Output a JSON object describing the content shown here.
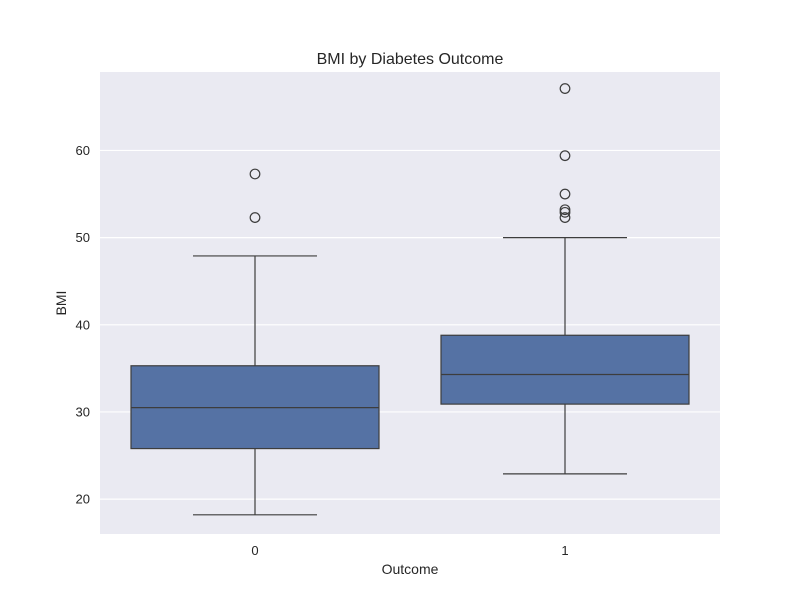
{
  "chart_data": {
    "type": "boxplot",
    "title": "BMI by Diabetes Outcome",
    "xlabel": "Outcome",
    "ylabel": "BMI",
    "categories": [
      "0",
      "1"
    ],
    "ylim": [
      16,
      69
    ],
    "yticks": [
      20,
      30,
      40,
      50,
      60
    ],
    "grid": true,
    "box_color": "#5572a4",
    "line_color": "#3d3d3d",
    "background_color": "#eaeaf2",
    "grid_color": "#ffffff",
    "boxes": [
      {
        "category": "0",
        "whisker_low": 18.2,
        "q1": 25.8,
        "median": 30.5,
        "q3": 35.3,
        "whisker_high": 47.9,
        "outliers": [
          52.3,
          57.3
        ]
      },
      {
        "category": "1",
        "whisker_low": 22.9,
        "q1": 30.9,
        "median": 34.3,
        "q3": 38.8,
        "whisker_high": 50.0,
        "outliers": [
          52.3,
          52.9,
          53.2,
          55.0,
          59.4,
          67.1
        ]
      }
    ]
  }
}
